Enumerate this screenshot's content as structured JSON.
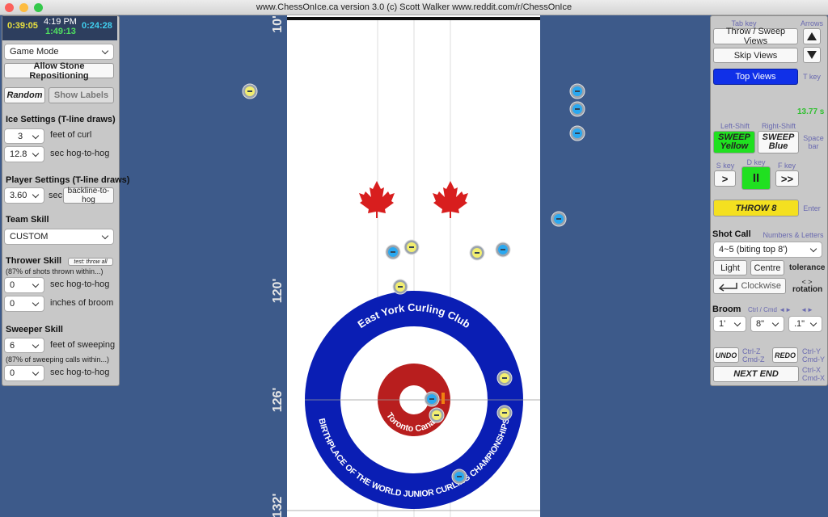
{
  "window": {
    "title": "www.ChessOnIce.ca version 3.0    (c) Scott Walker    www.reddit.com/r/ChessOnIce"
  },
  "left": {
    "timers": {
      "yellow": "0:39:05",
      "clock": "4:19 PM",
      "elapsed": "1:49:13",
      "blue": "0:24:28"
    },
    "game_mode": "Game Mode",
    "allow": "Allow Stone Repositioning",
    "random": "Random",
    "show_labels": "Show Labels",
    "ice": {
      "heading": "Ice Settings (T-line draws)",
      "curl": "3",
      "curl_unit": "feet of curl",
      "hog": "12.8",
      "hog_unit": "sec hog-to-hog"
    },
    "player": {
      "heading": "Player Settings (T-line draws)",
      "time": "3.60",
      "unit": "sec",
      "mode": "backline-to-hog"
    },
    "team": {
      "heading": "Team Skill",
      "value": "CUSTOM"
    },
    "thrower": {
      "heading": "Thrower Skill",
      "test": "test: throw all",
      "note": "(87% of shots thrown within...)",
      "hog": "0",
      "hog_unit": "sec hog-to-hog",
      "broom": "0",
      "broom_unit": "inches of broom"
    },
    "sweeper": {
      "heading": "Sweeper Skill",
      "feet": "6",
      "feet_unit": "feet of sweeping",
      "note": "(87% of sweeping calls within...)",
      "hog": "0",
      "hog_unit": "sec hog-to-hog"
    }
  },
  "right": {
    "tab_key": "Tab key",
    "arrows": "Arrows",
    "throw_sweep": "Throw / Sweep Views",
    "skip": "Skip Views",
    "top": "Top Views",
    "t_key": "T key",
    "timer": "13.77 s",
    "left_shift": "Left-Shift",
    "right_shift": "Right-Shift",
    "sweep_yellow": [
      "SWEEP",
      "Yellow"
    ],
    "sweep_blue": [
      "SWEEP",
      "Blue"
    ],
    "space": [
      "Space",
      "bar"
    ],
    "s_key": "S key",
    "d_key": "D key",
    "f_key": "F key",
    "next": ">",
    "pause": "II",
    "fast": ">>",
    "throw": "THROW 8",
    "enter": "Enter",
    "shot_call": "Shot Call",
    "numbers": "Numbers & Letters",
    "shot": "4~5 (biting top 8')",
    "light": "Light",
    "centre": "Centre",
    "tolerance": "tolerance",
    "clockwise": "Clockwise",
    "rot_keys": "< >",
    "rotation": "rotation",
    "broom": "Broom",
    "ctrl": "Ctrl / Cmd ◄►",
    "arrows2": "◄►",
    "feet": "1'",
    "inches": "8\"",
    "tenths": ".1\"",
    "undo": "UNDO",
    "undo_keys": [
      "Ctrl-Z",
      "Cmd-Z"
    ],
    "redo": "REDO",
    "redo_keys": [
      "Ctrl-Y",
      "Cmd-Y"
    ],
    "next_end": "NEXT END",
    "next_keys": [
      "Ctrl-X",
      "Cmd-X"
    ]
  },
  "sheet": {
    "distances": [
      "10'",
      "120'",
      "126'",
      "132'"
    ],
    "club": "East York Curling Club",
    "motto": "BIRTHPLACE OF THE WORLD JUNIOR CURLING CHAMPIONSHIPS",
    "city": "Toronto Canada"
  }
}
